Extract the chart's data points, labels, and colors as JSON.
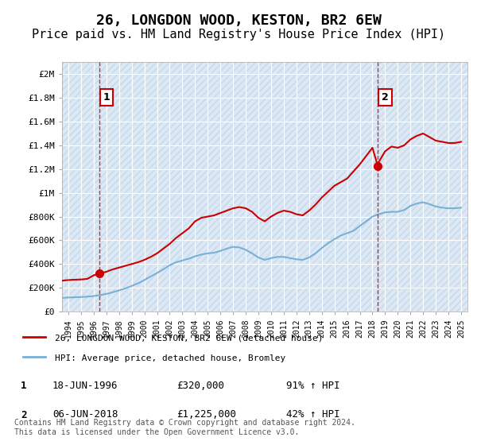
{
  "title": "26, LONGDON WOOD, KESTON, BR2 6EW",
  "subtitle": "Price paid vs. HM Land Registry's House Price Index (HPI)",
  "title_fontsize": 13,
  "subtitle_fontsize": 11,
  "background_color": "#ffffff",
  "plot_bg_color": "#dce9f5",
  "hatch_color": "#c5d8ed",
  "grid_color": "#ffffff",
  "legend_label_red": "26, LONGDON WOOD, KESTON, BR2 6EW (detached house)",
  "legend_label_blue": "HPI: Average price, detached house, Bromley",
  "ylabel_color": "#333333",
  "red_color": "#cc0000",
  "blue_color": "#7ab0d4",
  "annotation1": {
    "label": "1",
    "date_x": 1996.46,
    "y": 320000,
    "price": "£320,000",
    "date_str": "18-JUN-1996",
    "pct": "91% ↑ HPI"
  },
  "annotation2": {
    "label": "2",
    "date_x": 2018.43,
    "y": 1225000,
    "price": "£1,225,000",
    "date_str": "06-JUN-2018",
    "pct": "42% ↑ HPI"
  },
  "yticks": [
    0,
    200000,
    400000,
    600000,
    800000,
    1000000,
    1200000,
    1400000,
    1600000,
    1800000,
    2000000
  ],
  "ytick_labels": [
    "£0",
    "£200K",
    "£400K",
    "£600K",
    "£800K",
    "£1M",
    "£1.2M",
    "£1.4M",
    "£1.6M",
    "£1.8M",
    "£2M"
  ],
  "xlim": [
    1993.5,
    2025.5
  ],
  "ylim": [
    0,
    2100000
  ],
  "footer": "Contains HM Land Registry data © Crown copyright and database right 2024.\nThis data is licensed under the Open Government Licence v3.0.",
  "red_line_x": [
    1993.5,
    1994.0,
    1994.5,
    1995.0,
    1995.5,
    1996.0,
    1996.46,
    1997.0,
    1997.5,
    1998.0,
    1998.5,
    1999.0,
    1999.5,
    2000.0,
    2000.5,
    2001.0,
    2001.5,
    2002.0,
    2002.5,
    2003.0,
    2003.5,
    2004.0,
    2004.5,
    2005.0,
    2005.5,
    2006.0,
    2006.5,
    2007.0,
    2007.5,
    2008.0,
    2008.5,
    2009.0,
    2009.5,
    2010.0,
    2010.5,
    2011.0,
    2011.5,
    2012.0,
    2012.5,
    2013.0,
    2013.5,
    2014.0,
    2014.5,
    2015.0,
    2015.5,
    2016.0,
    2016.5,
    2017.0,
    2017.5,
    2018.0,
    2018.43,
    2018.5,
    2019.0,
    2019.5,
    2020.0,
    2020.5,
    2021.0,
    2021.5,
    2022.0,
    2022.5,
    2023.0,
    2023.5,
    2024.0,
    2024.5,
    2025.0
  ],
  "red_line_y": [
    260000,
    265000,
    268000,
    270000,
    275000,
    305000,
    320000,
    335000,
    355000,
    370000,
    385000,
    400000,
    415000,
    435000,
    460000,
    490000,
    530000,
    570000,
    620000,
    660000,
    700000,
    760000,
    790000,
    800000,
    810000,
    830000,
    850000,
    870000,
    880000,
    870000,
    840000,
    790000,
    760000,
    800000,
    830000,
    850000,
    840000,
    820000,
    810000,
    850000,
    900000,
    960000,
    1010000,
    1060000,
    1090000,
    1120000,
    1180000,
    1240000,
    1310000,
    1380000,
    1225000,
    1260000,
    1350000,
    1390000,
    1380000,
    1400000,
    1450000,
    1480000,
    1500000,
    1470000,
    1440000,
    1430000,
    1420000,
    1420000,
    1430000
  ],
  "blue_line_x": [
    1993.5,
    1994.0,
    1994.5,
    1995.0,
    1995.5,
    1996.0,
    1996.5,
    1997.0,
    1997.5,
    1998.0,
    1998.5,
    1999.0,
    1999.5,
    2000.0,
    2000.5,
    2001.0,
    2001.5,
    2002.0,
    2002.5,
    2003.0,
    2003.5,
    2004.0,
    2004.5,
    2005.0,
    2005.5,
    2006.0,
    2006.5,
    2007.0,
    2007.5,
    2008.0,
    2008.5,
    2009.0,
    2009.5,
    2010.0,
    2010.5,
    2011.0,
    2011.5,
    2012.0,
    2012.5,
    2013.0,
    2013.5,
    2014.0,
    2014.5,
    2015.0,
    2015.5,
    2016.0,
    2016.5,
    2017.0,
    2017.5,
    2018.0,
    2018.5,
    2019.0,
    2019.5,
    2020.0,
    2020.5,
    2021.0,
    2021.5,
    2022.0,
    2022.5,
    2023.0,
    2023.5,
    2024.0,
    2024.5,
    2025.0
  ],
  "blue_line_y": [
    115000,
    118000,
    120000,
    122000,
    125000,
    130000,
    138000,
    148000,
    162000,
    178000,
    195000,
    215000,
    238000,
    265000,
    295000,
    325000,
    355000,
    390000,
    415000,
    430000,
    445000,
    465000,
    480000,
    490000,
    495000,
    510000,
    530000,
    545000,
    540000,
    520000,
    490000,
    455000,
    435000,
    450000,
    460000,
    460000,
    450000,
    440000,
    435000,
    455000,
    490000,
    535000,
    575000,
    610000,
    640000,
    660000,
    680000,
    720000,
    760000,
    800000,
    820000,
    835000,
    840000,
    840000,
    855000,
    890000,
    910000,
    920000,
    905000,
    885000,
    875000,
    870000,
    870000,
    875000
  ]
}
